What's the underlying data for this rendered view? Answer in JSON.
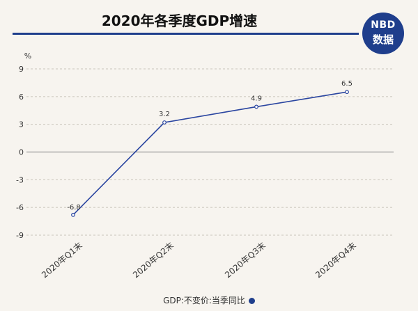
{
  "title": "2020年各季度GDP增速",
  "badge": {
    "line1": "NBD",
    "line2": "数据"
  },
  "colors": {
    "line": "#2a45a0",
    "grid": "#c9c4bb",
    "axis": "#999999"
  },
  "chart_data": {
    "type": "line",
    "title": "2020年各季度GDP增速",
    "unit": "%",
    "categories": [
      "2020年Q1末",
      "2020年Q2末",
      "2020年Q3末",
      "2020年Q4末"
    ],
    "series": [
      {
        "values": [
          -6.8,
          3.2,
          4.9,
          6.5
        ]
      }
    ],
    "data_labels": [
      "-6.8",
      "3.2",
      "4.9",
      "6.5"
    ],
    "yticks": [
      "9",
      "6",
      "3",
      "0",
      "-3",
      "-6",
      "-9"
    ],
    "ylim": [
      -9,
      9
    ],
    "grid": true,
    "legend": {
      "label": "GDP:不变价:当季同比",
      "position": "bottom"
    }
  }
}
